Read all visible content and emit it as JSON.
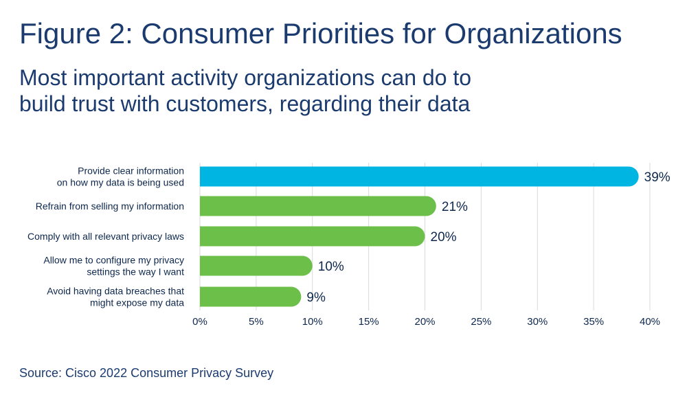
{
  "header": {
    "title": "Figure 2: Consumer Priorities for Organizations",
    "subtitle_line1": "Most important activity organizations can do to",
    "subtitle_line2": "build trust with customers, regarding their data"
  },
  "footer": {
    "source": "Source: Cisco 2022 Consumer Privacy Survey"
  },
  "chart_data": {
    "type": "bar",
    "orientation": "horizontal",
    "title": "Figure 2: Consumer Priorities for Organizations",
    "subtitle": "Most important activity organizations can do to build trust with customers, regarding their data",
    "categories": [
      [
        "Provide clear information",
        "on how my data is being used"
      ],
      [
        "Refrain from selling my information"
      ],
      [
        "Comply with all relevant privacy laws"
      ],
      [
        "Allow me to configure my privacy",
        "settings the way I want"
      ],
      [
        "Avoid having data breaches that",
        "might expose my data"
      ]
    ],
    "values": [
      39,
      21,
      20,
      10,
      9
    ],
    "value_labels": [
      "39%",
      "21%",
      "20%",
      "10%",
      "9%"
    ],
    "bar_colors": [
      "#00b5e2",
      "#6cc04a",
      "#6cc04a",
      "#6cc04a",
      "#6cc04a"
    ],
    "xlim": [
      0,
      40
    ],
    "xticks": [
      0,
      5,
      10,
      15,
      20,
      25,
      30,
      35,
      40
    ],
    "xtick_labels": [
      "0%",
      "5%",
      "10%",
      "15%",
      "20%",
      "25%",
      "30%",
      "35%",
      "40%"
    ],
    "xlabel": "",
    "ylabel": "",
    "grid": true
  }
}
